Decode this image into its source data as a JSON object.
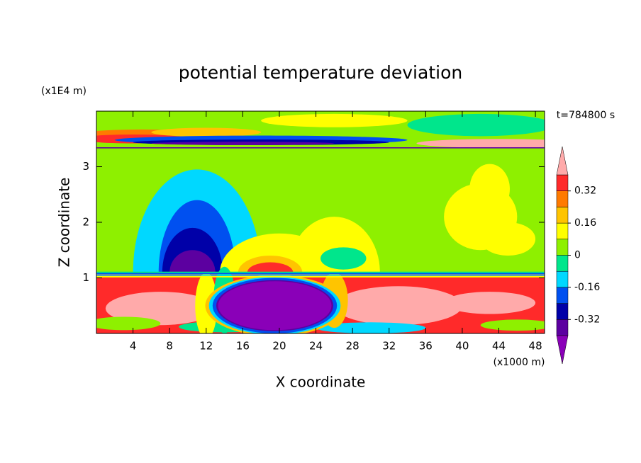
{
  "chart_data": {
    "type": "contour",
    "title": "potential temperature deviation",
    "x_label": "X coordinate",
    "y_label": "Z coordinate",
    "x_unit_label": "(x1000 m)",
    "y_unit_label": "(x1E4 m)",
    "time_label": "t=784800 s",
    "xlim": [
      0,
      49
    ],
    "ylim": [
      0,
      4
    ],
    "xticks": [
      4,
      8,
      12,
      16,
      20,
      24,
      28,
      32,
      36,
      40,
      44,
      48
    ],
    "yticks": [
      1,
      2,
      3
    ],
    "colorbar": {
      "levels": [
        -0.4,
        -0.32,
        -0.24,
        -0.16,
        -0.08,
        0,
        0.08,
        0.16,
        0.24,
        0.32,
        0.4
      ],
      "colors": [
        "#8a00b8",
        "#5c00a0",
        "#0000a8",
        "#0050f0",
        "#00d8ff",
        "#00e68c",
        "#8ef000",
        "#ffff00",
        "#ffc400",
        "#ff7a00",
        "#ff2a2a",
        "#ffaaaa"
      ],
      "ticks": [
        0.32,
        0.16,
        0,
        -0.16,
        -0.32
      ]
    }
  }
}
